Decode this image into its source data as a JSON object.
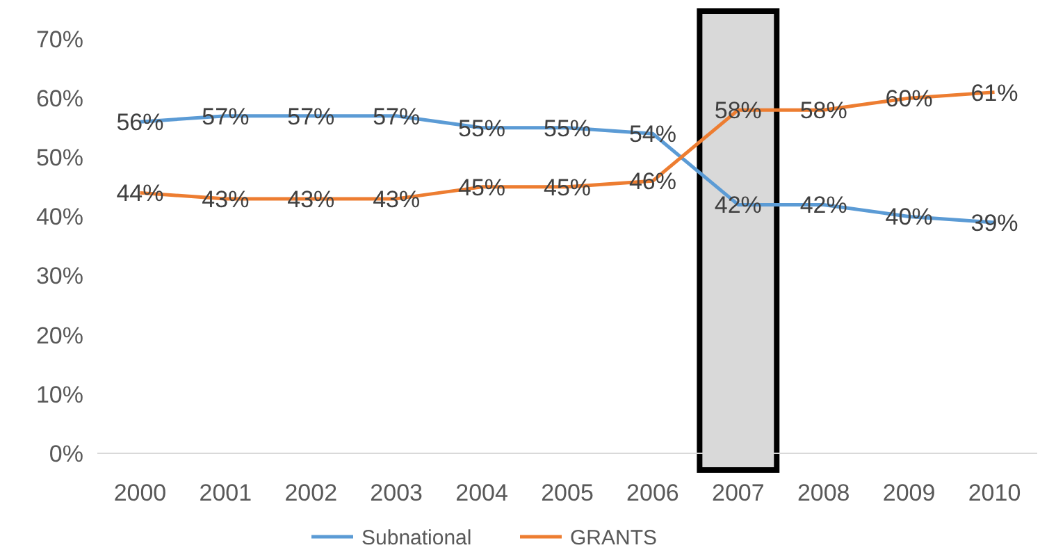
{
  "chart_data": {
    "type": "line",
    "categories": [
      "2000",
      "2001",
      "2002",
      "2003",
      "2004",
      "2005",
      "2006",
      "2007",
      "2008",
      "2009",
      "2010"
    ],
    "series": [
      {
        "name": "Subnational",
        "color": "#5b9bd5",
        "values": [
          56,
          57,
          57,
          57,
          55,
          55,
          54,
          42,
          42,
          40,
          39
        ],
        "value_labels": [
          "56%",
          "57%",
          "57%",
          "57%",
          "55%",
          "55%",
          "54%",
          "42%",
          "42%",
          "40%",
          "39%"
        ]
      },
      {
        "name": "GRANTS",
        "color": "#ed7d31",
        "values": [
          44,
          43,
          43,
          43,
          45,
          45,
          46,
          58,
          58,
          60,
          61
        ],
        "value_labels": [
          "44%",
          "43%",
          "43%",
          "43%",
          "45%",
          "45%",
          "46%",
          "58%",
          "58%",
          "60%",
          "61%"
        ]
      }
    ],
    "ylim": [
      0,
      70
    ],
    "yticks": [
      {
        "value": 0,
        "label": "0%"
      },
      {
        "value": 10,
        "label": "10%"
      },
      {
        "value": 20,
        "label": "20%"
      },
      {
        "value": 30,
        "label": "30%"
      },
      {
        "value": 40,
        "label": "40%"
      },
      {
        "value": 50,
        "label": "50%"
      },
      {
        "value": 60,
        "label": "60%"
      },
      {
        "value": 70,
        "label": "70%"
      }
    ],
    "bands": [
      {
        "axis": "x",
        "from": "2007",
        "to": "2007",
        "color": "#d9d9d9"
      }
    ],
    "grid": false,
    "legend": "bottom",
    "marker": "none",
    "line_style": "solid"
  }
}
